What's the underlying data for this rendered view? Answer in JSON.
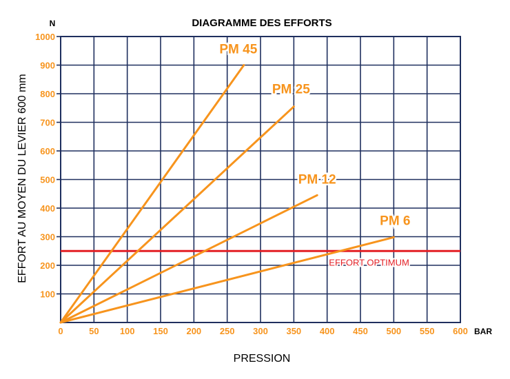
{
  "chart_data": {
    "type": "line",
    "title": "DIAGRAMME DES EFFORTS",
    "xlabel": "PRESSION",
    "ylabel": "EFFORT AU MOYEN DU LEVIER 600 mm",
    "x_unit": "BAR",
    "y_unit": "N",
    "xlim": [
      0,
      600
    ],
    "ylim": [
      0,
      1000
    ],
    "x_ticks": [
      "0",
      "50",
      "100",
      "150",
      "200",
      "250",
      "300",
      "350",
      "400",
      "450",
      "500",
      "550",
      "600"
    ],
    "y_ticks": [
      "100",
      "200",
      "300",
      "400",
      "500",
      "600",
      "700",
      "800",
      "900",
      "1000"
    ],
    "grid": true,
    "series": [
      {
        "name": "PM 45",
        "x": [
          0,
          275
        ],
        "y": [
          0,
          900
        ]
      },
      {
        "name": "PM 25",
        "x": [
          0,
          350
        ],
        "y": [
          0,
          755
        ]
      },
      {
        "name": "PM 12",
        "x": [
          0,
          385
        ],
        "y": [
          0,
          445
        ]
      },
      {
        "name": "PM 6",
        "x": [
          0,
          500
        ],
        "y": [
          0,
          298
        ]
      }
    ],
    "reference_line": {
      "label": "EFFORT OPTIMUM",
      "y": 250
    },
    "colors": {
      "series": "#f7941d",
      "reference": "#e31e24",
      "grid": "#1f2f5e",
      "ticks": "#f7941d"
    }
  }
}
